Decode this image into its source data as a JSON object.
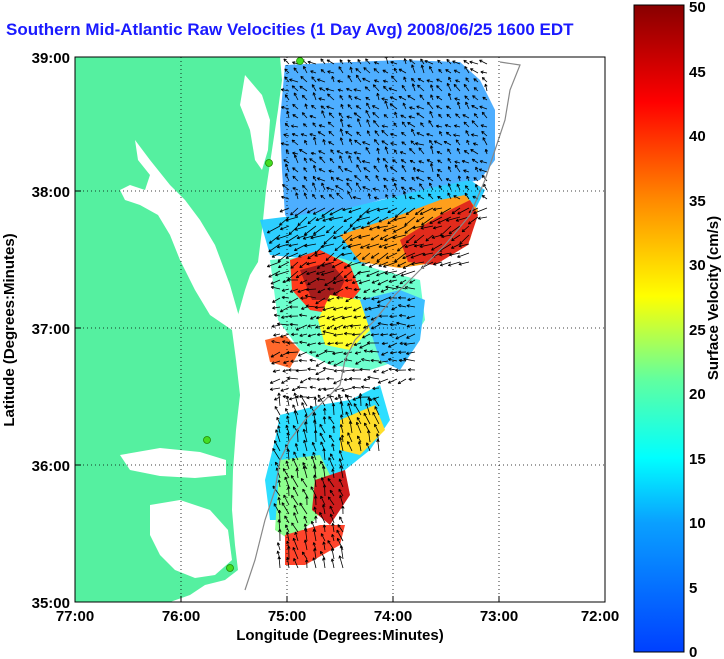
{
  "title": "Southern Mid-Atlantic Raw Velocities (1 Day Avg) 2008/06/25 1600 EDT",
  "xlabel": "Longitude (Degrees:Minutes)",
  "ylabel": "Latitude (Degrees:Minutes)",
  "x_ticks": [
    "77:00",
    "76:00",
    "75:00",
    "74:00",
    "73:00",
    "72:00"
  ],
  "y_ticks": [
    "39:00",
    "38:00",
    "37:00",
    "36:00",
    "35:00"
  ],
  "colorbar": {
    "label": "Surface Velocity (cm/s)",
    "ticks": [
      "0",
      "5",
      "10",
      "15",
      "20",
      "25",
      "30",
      "35",
      "40",
      "45",
      "50"
    ],
    "range": [
      0,
      50
    ]
  },
  "colors": {
    "land": "#55f0a0",
    "water_inland": "#ffffff",
    "title": "#1a1aff",
    "station": "#44dd22"
  }
}
